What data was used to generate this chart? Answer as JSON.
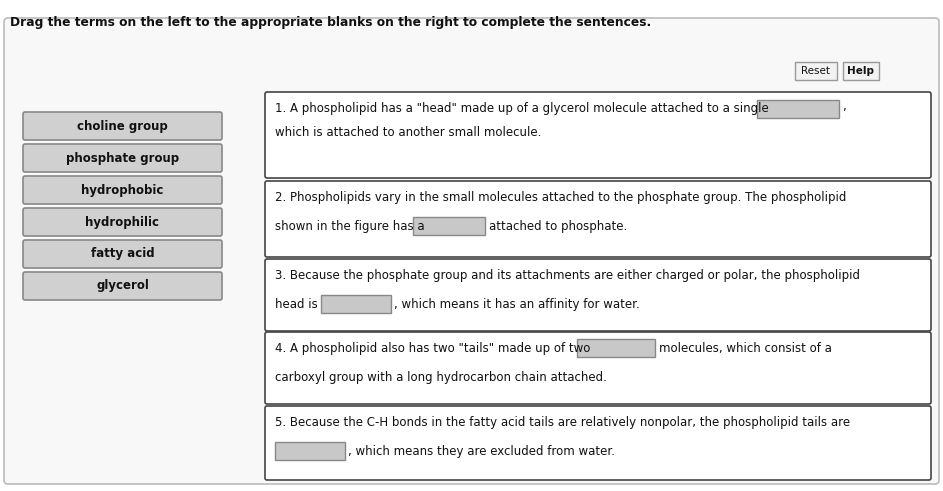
{
  "title": "Drag the terms on the left to the appropriate blanks on the right to complete the sentences.",
  "background_color": "#ffffff",
  "outer_box_color": "#f8f8f8",
  "outer_box_edge": "#bbbbbb",
  "term_buttons": [
    "choline group",
    "phosphate group",
    "hydrophobic",
    "hydrophilic",
    "fatty acid",
    "glycerol"
  ],
  "term_button_bg": "#d0d0d0",
  "term_button_edge": "#888888",
  "reset_btn": "Reset",
  "help_btn": "Help",
  "blank_color": "#c8c8c8",
  "blank_edge": "#888888",
  "sentence_box_edge": "#444444",
  "sentence_box_bg": "#ffffff",
  "font_size": 8.5,
  "title_font_size": 8.8,
  "fig_w": 9.43,
  "fig_h": 4.91,
  "dpi": 100
}
